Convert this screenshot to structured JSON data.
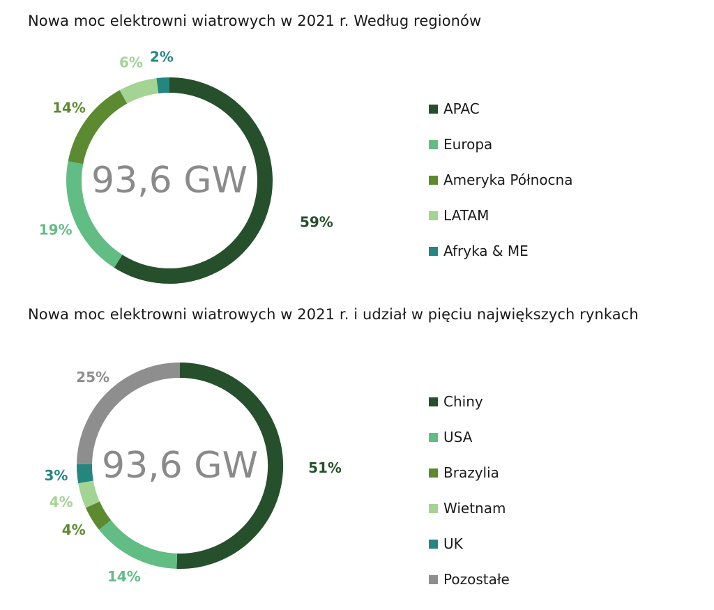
{
  "chart_data": [
    {
      "type": "pie",
      "title": "Nowa moc elektrowni wiatrowych w 2021 r. Według regionów",
      "center_label": "93,6 GW",
      "legend_position": "right",
      "slices": [
        {
          "label": "APAC",
          "value": 59,
          "value_label": "59%",
          "color": "#26502c"
        },
        {
          "label": "Europa",
          "value": 19,
          "value_label": "19%",
          "color": "#62bd85"
        },
        {
          "label": "Ameryka Północna",
          "value": 14,
          "value_label": "14%",
          "color": "#5c8a30"
        },
        {
          "label": "LATAM",
          "value": 6,
          "value_label": "6%",
          "color": "#a3d493"
        },
        {
          "label": "Afryka & ME",
          "value": 2,
          "value_label": "2%",
          "color": "#258680"
        }
      ],
      "drawing_order": [
        "APAC",
        "Europa",
        "Ameryka Północna",
        "LATAM",
        "Afryka & ME"
      ]
    },
    {
      "type": "pie",
      "title": "Nowa moc elektrowni wiatrowych w 2021 r. i udział w pięciu największych rynkach",
      "center_label": "93,6 GW",
      "legend_position": "right",
      "slices": [
        {
          "label": "Chiny",
          "value": 51,
          "value_label": "51%",
          "color": "#26502c"
        },
        {
          "label": "USA",
          "value": 14,
          "value_label": "14%",
          "color": "#62bd85"
        },
        {
          "label": "Brazylia",
          "value": 4,
          "value_label": "4%",
          "color": "#5c8a30"
        },
        {
          "label": "Wietnam",
          "value": 4,
          "value_label": "4%",
          "color": "#a3d493"
        },
        {
          "label": "UK",
          "value": 3,
          "value_label": "3%",
          "color": "#258680"
        },
        {
          "label": "Pozostałe",
          "value": 25,
          "value_label": "25%",
          "color": "#8e8e8e"
        }
      ],
      "drawing_order": [
        "Chiny",
        "USA",
        "Brazylia",
        "Wietnam",
        "UK",
        "Pozostałe"
      ]
    }
  ]
}
